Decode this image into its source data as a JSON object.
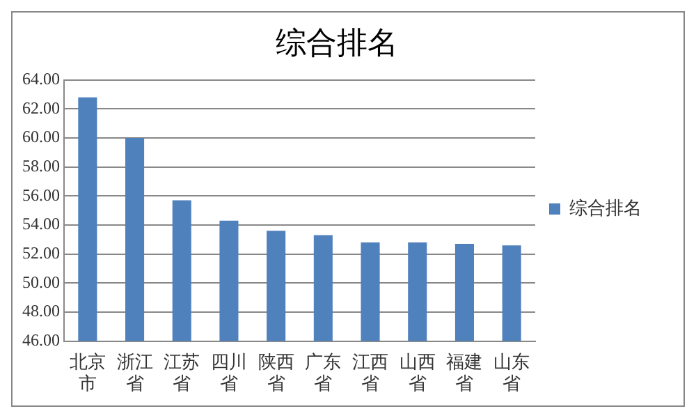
{
  "chart_data": {
    "type": "bar",
    "title": "综合排名",
    "categories": [
      "北京市",
      "浙江省",
      "江苏省",
      "四川省",
      "陕西省",
      "广东省",
      "江西省",
      "山西省",
      "福建省",
      "山东省"
    ],
    "series": [
      {
        "name": "综合排名",
        "color": "#4f81bd",
        "values": [
          62.8,
          60.0,
          55.7,
          54.3,
          53.6,
          53.3,
          52.8,
          52.8,
          52.7,
          52.6
        ]
      }
    ],
    "ylim": [
      46,
      64
    ],
    "yticks": [
      {
        "value": 46,
        "label": "46.00"
      },
      {
        "value": 48,
        "label": "48.00"
      },
      {
        "value": 50,
        "label": "50.00"
      },
      {
        "value": 52,
        "label": "52.00"
      },
      {
        "value": 54,
        "label": "54.00"
      },
      {
        "value": 56,
        "label": "56.00"
      },
      {
        "value": 58,
        "label": "58.00"
      },
      {
        "value": 60,
        "label": "60.00"
      },
      {
        "value": 62,
        "label": "62.00"
      },
      {
        "value": 64,
        "label": "64.00"
      }
    ],
    "grid": "y",
    "legend": "right"
  }
}
